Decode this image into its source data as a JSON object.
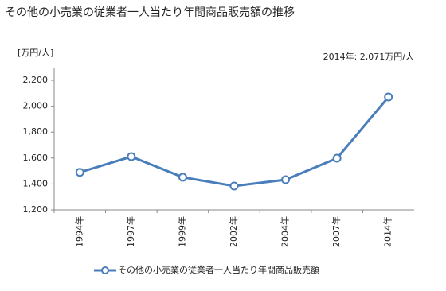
{
  "chart_data": {
    "type": "line",
    "title": "その他の小売業の従業者一人当たり年間商品販売額の推移",
    "y_axis_label": "[万円/人]",
    "annotation": "2014年: 2,071万円/人",
    "categories": [
      "1994年",
      "1997年",
      "1999年",
      "2002年",
      "2004年",
      "2007年",
      "2014年"
    ],
    "series": [
      {
        "name": "その他の小売業の従業者一人当たり年間商品販売額",
        "color": "#4a7ebb",
        "values": [
          1490,
          1611,
          1452,
          1384,
          1433,
          1599,
          2071
        ]
      }
    ],
    "ylim": [
      1200,
      2300
    ],
    "yticks": [
      {
        "value": 1200,
        "label": "1,200"
      },
      {
        "value": 1400,
        "label": "1,400"
      },
      {
        "value": 1600,
        "label": "1,600"
      },
      {
        "value": 1800,
        "label": "1,800"
      },
      {
        "value": 2000,
        "label": "2,000"
      },
      {
        "value": 2200,
        "label": "2,200"
      }
    ],
    "grid": false
  }
}
